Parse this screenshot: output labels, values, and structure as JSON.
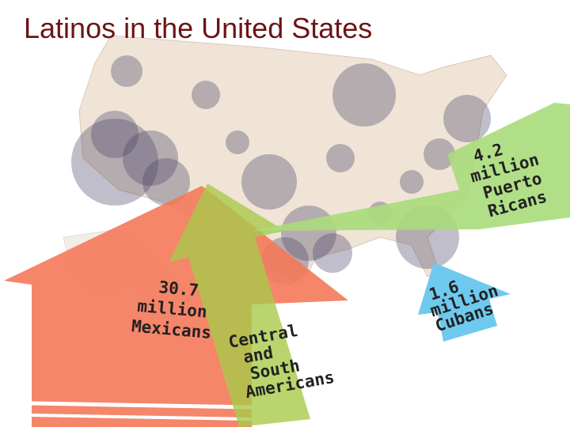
{
  "header": {
    "title": "Latinos in the United States"
  },
  "arrows": [
    {
      "lines": [
        "30.7",
        "million",
        "Mexicans"
      ]
    },
    {
      "lines": [
        "Central",
        "and",
        "South",
        "Americans"
      ]
    },
    {
      "lines": [
        "4.2",
        "million",
        "Puerto",
        "Ricans"
      ]
    },
    {
      "lines": [
        "1.6",
        "million",
        "Cubans"
      ]
    }
  ]
}
